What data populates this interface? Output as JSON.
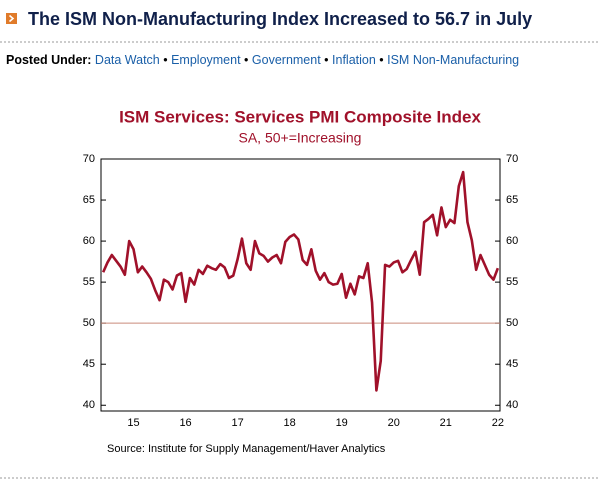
{
  "header": {
    "title": "The ISM Non-Manufacturing Index Increased to 56.7 in July"
  },
  "posted_under": {
    "label": "Posted Under:",
    "links": [
      "Data Watch",
      "Employment",
      "Government",
      "Inflation",
      "ISM Non-Manufacturing"
    ]
  },
  "chart_data": {
    "type": "line",
    "title": "ISM Services: Services PMI Composite Index",
    "subtitle": "SA, 50+=Increasing",
    "source": "Source:  Institute for Supply Management/Haver Analytics",
    "categories": [
      null,
      null,
      null,
      null,
      null,
      null,
      null,
      "15",
      null,
      null,
      null,
      null,
      null,
      null,
      null,
      null,
      null,
      null,
      null,
      "16",
      null,
      null,
      null,
      null,
      null,
      null,
      null,
      null,
      null,
      null,
      null,
      "17",
      null,
      null,
      null,
      null,
      null,
      null,
      null,
      null,
      null,
      null,
      null,
      "18",
      null,
      null,
      null,
      null,
      null,
      null,
      null,
      null,
      null,
      null,
      null,
      "19",
      null,
      null,
      null,
      null,
      null,
      null,
      null,
      null,
      null,
      null,
      null,
      "20",
      null,
      null,
      null,
      null,
      null,
      null,
      null,
      null,
      null,
      null,
      null,
      "21",
      null,
      null,
      null,
      null,
      null,
      null,
      null,
      null,
      null,
      null,
      null,
      "22"
    ],
    "series": [
      {
        "name": "ISM Services PMI",
        "color": "#a0112a",
        "values": [
          56.2,
          57.4,
          58.3,
          57.6,
          56.9,
          55.9,
          60.0,
          59.0,
          56.2,
          56.9,
          56.2,
          55.4,
          54.0,
          52.8,
          55.3,
          55.0,
          54.1,
          55.8,
          56.1,
          52.6,
          55.5,
          54.7,
          56.5,
          56.0,
          57.0,
          56.7,
          56.5,
          57.2,
          56.8,
          55.5,
          55.8,
          57.8,
          60.3,
          57.3,
          56.5,
          60.0,
          58.5,
          58.2,
          57.5,
          58.0,
          58.3,
          57.3,
          59.9,
          60.5,
          60.8,
          60.2,
          57.7,
          57.1,
          59.0,
          56.4,
          55.3,
          56.1,
          55.0,
          54.7,
          54.8,
          56.0,
          53.1,
          54.8,
          53.5,
          55.7,
          55.5,
          57.3,
          52.5,
          41.8,
          45.4,
          57.1,
          56.9,
          57.4,
          57.6,
          56.2,
          56.6,
          57.7,
          58.7,
          55.9,
          62.3,
          62.7,
          63.2,
          60.7,
          64.1,
          61.7,
          62.6,
          62.2,
          66.7,
          68.4,
          62.3,
          60.1,
          56.5,
          58.3,
          57.1,
          55.9,
          55.3,
          56.7
        ]
      }
    ],
    "ylim": [
      39.3,
      70
    ],
    "yticks": [
      40,
      45,
      50,
      55,
      60,
      65,
      70
    ],
    "y2lim": [
      39.3,
      70
    ],
    "y2ticks": [
      40,
      45,
      50,
      55,
      60,
      65,
      70
    ],
    "reference_line": {
      "value": 50,
      "color": "#c98a7a"
    }
  }
}
